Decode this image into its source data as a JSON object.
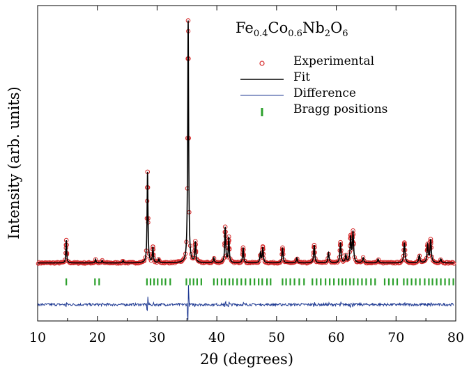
{
  "chart_data": {
    "type": "line",
    "title": "Fe0.4Co0.6Nb2O6",
    "title_parts": {
      "base1": "Fe",
      "sub1": "0.4",
      "base2": "Co",
      "sub2": "0.6",
      "base3": "Nb",
      "sub3": "2",
      "base4": "O",
      "sub4": "6"
    },
    "xlabel": "2θ (degrees)",
    "ylabel": "Intensity (arb. units)",
    "xlim": [
      10,
      80
    ],
    "ylim": [
      -0.2,
      1.05
    ],
    "x_ticks": [
      10,
      20,
      30,
      40,
      50,
      60,
      70,
      80
    ],
    "x_tick_labels": [
      "10",
      "20",
      "30",
      "40",
      "50",
      "60",
      "70",
      "80"
    ],
    "y_ticks_labeled": false,
    "grid": false,
    "legend_position": "top-right",
    "baseline": 0.03,
    "difference_offset": -0.135,
    "bragg_level": -0.045,
    "peaks": [
      {
        "x": 14.8,
        "h": 0.09
      },
      {
        "x": 19.7,
        "h": 0.015
      },
      {
        "x": 20.8,
        "h": 0.01
      },
      {
        "x": 24.3,
        "h": 0.01
      },
      {
        "x": 28.4,
        "h": 0.36
      },
      {
        "x": 29.3,
        "h": 0.06
      },
      {
        "x": 30.3,
        "h": 0.015
      },
      {
        "x": 35.2,
        "h": 0.96
      },
      {
        "x": 36.4,
        "h": 0.08
      },
      {
        "x": 39.5,
        "h": 0.02
      },
      {
        "x": 41.4,
        "h": 0.14
      },
      {
        "x": 42.0,
        "h": 0.1
      },
      {
        "x": 44.4,
        "h": 0.06
      },
      {
        "x": 47.3,
        "h": 0.04
      },
      {
        "x": 47.7,
        "h": 0.06
      },
      {
        "x": 51.0,
        "h": 0.06
      },
      {
        "x": 53.4,
        "h": 0.02
      },
      {
        "x": 56.3,
        "h": 0.07
      },
      {
        "x": 58.7,
        "h": 0.04
      },
      {
        "x": 60.7,
        "h": 0.08
      },
      {
        "x": 61.6,
        "h": 0.03
      },
      {
        "x": 62.4,
        "h": 0.1
      },
      {
        "x": 62.8,
        "h": 0.12
      },
      {
        "x": 64.5,
        "h": 0.02
      },
      {
        "x": 67.0,
        "h": 0.015
      },
      {
        "x": 71.4,
        "h": 0.08
      },
      {
        "x": 73.9,
        "h": 0.03
      },
      {
        "x": 75.3,
        "h": 0.07
      },
      {
        "x": 75.8,
        "h": 0.09
      },
      {
        "x": 77.5,
        "h": 0.015
      }
    ],
    "bragg_positions": [
      14.8,
      19.6,
      20.3,
      28.3,
      28.9,
      29.5,
      30.1,
      30.8,
      31.4,
      32.2,
      34.9,
      35.5,
      36.1,
      36.7,
      37.4,
      39.5,
      40.1,
      40.8,
      41.4,
      42.1,
      42.7,
      43.4,
      44.1,
      44.8,
      45.6,
      46.3,
      47.0,
      47.6,
      48.4,
      49.0,
      51.0,
      51.6,
      52.3,
      53.0,
      53.8,
      54.6,
      56.0,
      56.7,
      57.4,
      58.2,
      58.9,
      59.6,
      60.4,
      61.0,
      61.6,
      62.3,
      62.9,
      63.6,
      64.3,
      65.0,
      65.8,
      66.5,
      68.1,
      68.8,
      69.5,
      70.2,
      71.3,
      71.9,
      72.6,
      73.3,
      74.0,
      74.8,
      75.5,
      76.1,
      76.8,
      77.5,
      78.2,
      78.9,
      79.6
    ],
    "series": [
      {
        "name": "Experimental",
        "style": "open-circle",
        "color": "#d62728"
      },
      {
        "name": "Fit",
        "style": "line",
        "color": "#000000"
      },
      {
        "name": "Difference",
        "style": "line",
        "color": "#1f3a93"
      },
      {
        "name": "Bragg positions",
        "style": "tick",
        "color": "#2ca02c"
      }
    ]
  }
}
